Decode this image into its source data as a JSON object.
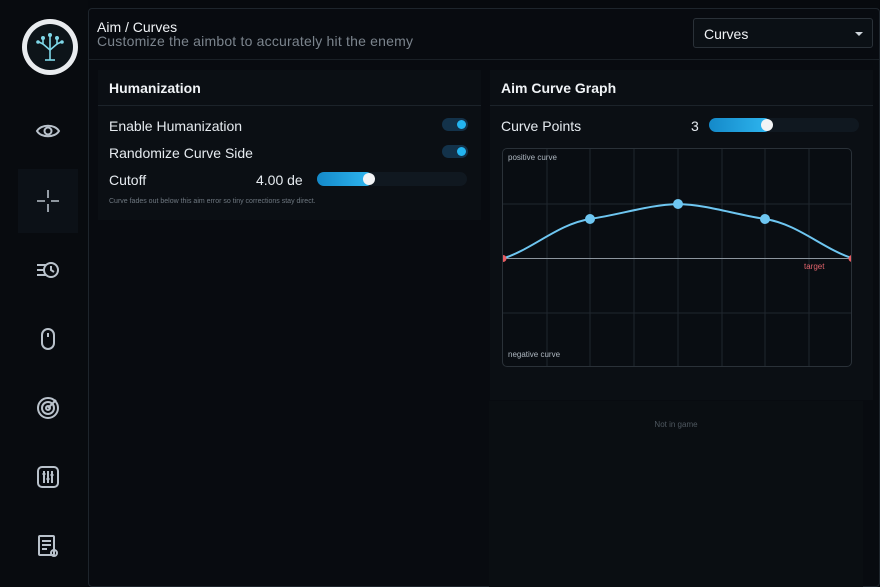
{
  "header": {
    "title": "Aim / Curves",
    "subtitle": "Customize the aimbot to accurately hit the enemy"
  },
  "mode_select": {
    "selected": "Curves"
  },
  "sidebar": {
    "items": [
      {
        "icon": "eye-icon"
      },
      {
        "icon": "crosshair-icon",
        "active": true
      },
      {
        "icon": "speed-icon"
      },
      {
        "icon": "mouse-icon"
      },
      {
        "icon": "radar-icon"
      },
      {
        "icon": "sliders-icon"
      },
      {
        "icon": "checklist-icon"
      }
    ]
  },
  "humanization": {
    "title": "Humanization",
    "enable_label": "Enable Humanization",
    "enable_value": true,
    "randomize_label": "Randomize Curve Side",
    "randomize_value": true,
    "cutoff_label": "Cutoff",
    "cutoff_value": "4.00 de",
    "cutoff_fill": 0.33,
    "hint": "Curve fades out below this aim error so tiny corrections stay direct."
  },
  "curve_graph": {
    "title": "Aim Curve Graph",
    "points_label": "Curve Points",
    "points_value": "3",
    "points_fill": 0.37,
    "positive_label": "positive curve",
    "negative_label": "negative curve",
    "target_label": "target",
    "accent_color": "#6ec6f1",
    "endpoint_color": "#e85d63"
  },
  "status": {
    "text": "Not in game"
  }
}
